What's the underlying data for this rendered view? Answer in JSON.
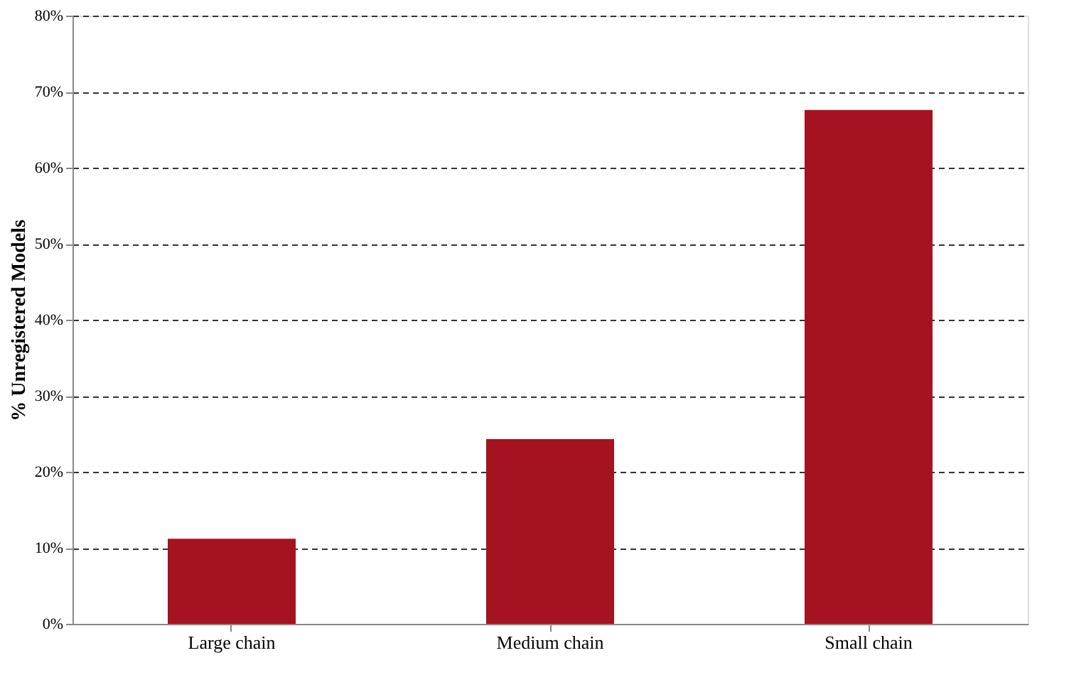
{
  "chart_data": {
    "type": "bar",
    "ylabel": "% Unregistered Models",
    "categories": [
      "Large chain",
      "Medium chain",
      "Small chain"
    ],
    "values": [
      11.2,
      24.3,
      67.6
    ],
    "color": "#a51320",
    "ylim": [
      0,
      80
    ],
    "yticks": [
      {
        "value": 0,
        "label": "0%"
      },
      {
        "value": 10,
        "label": "10%"
      },
      {
        "value": 20,
        "label": "20%"
      },
      {
        "value": 30,
        "label": "30%"
      },
      {
        "value": 40,
        "label": "40%"
      },
      {
        "value": 50,
        "label": "50%"
      },
      {
        "value": 60,
        "label": "60%"
      },
      {
        "value": 70,
        "label": "70%"
      },
      {
        "value": 80,
        "label": "80%"
      }
    ],
    "grid": "y",
    "line_style": "dashed"
  }
}
